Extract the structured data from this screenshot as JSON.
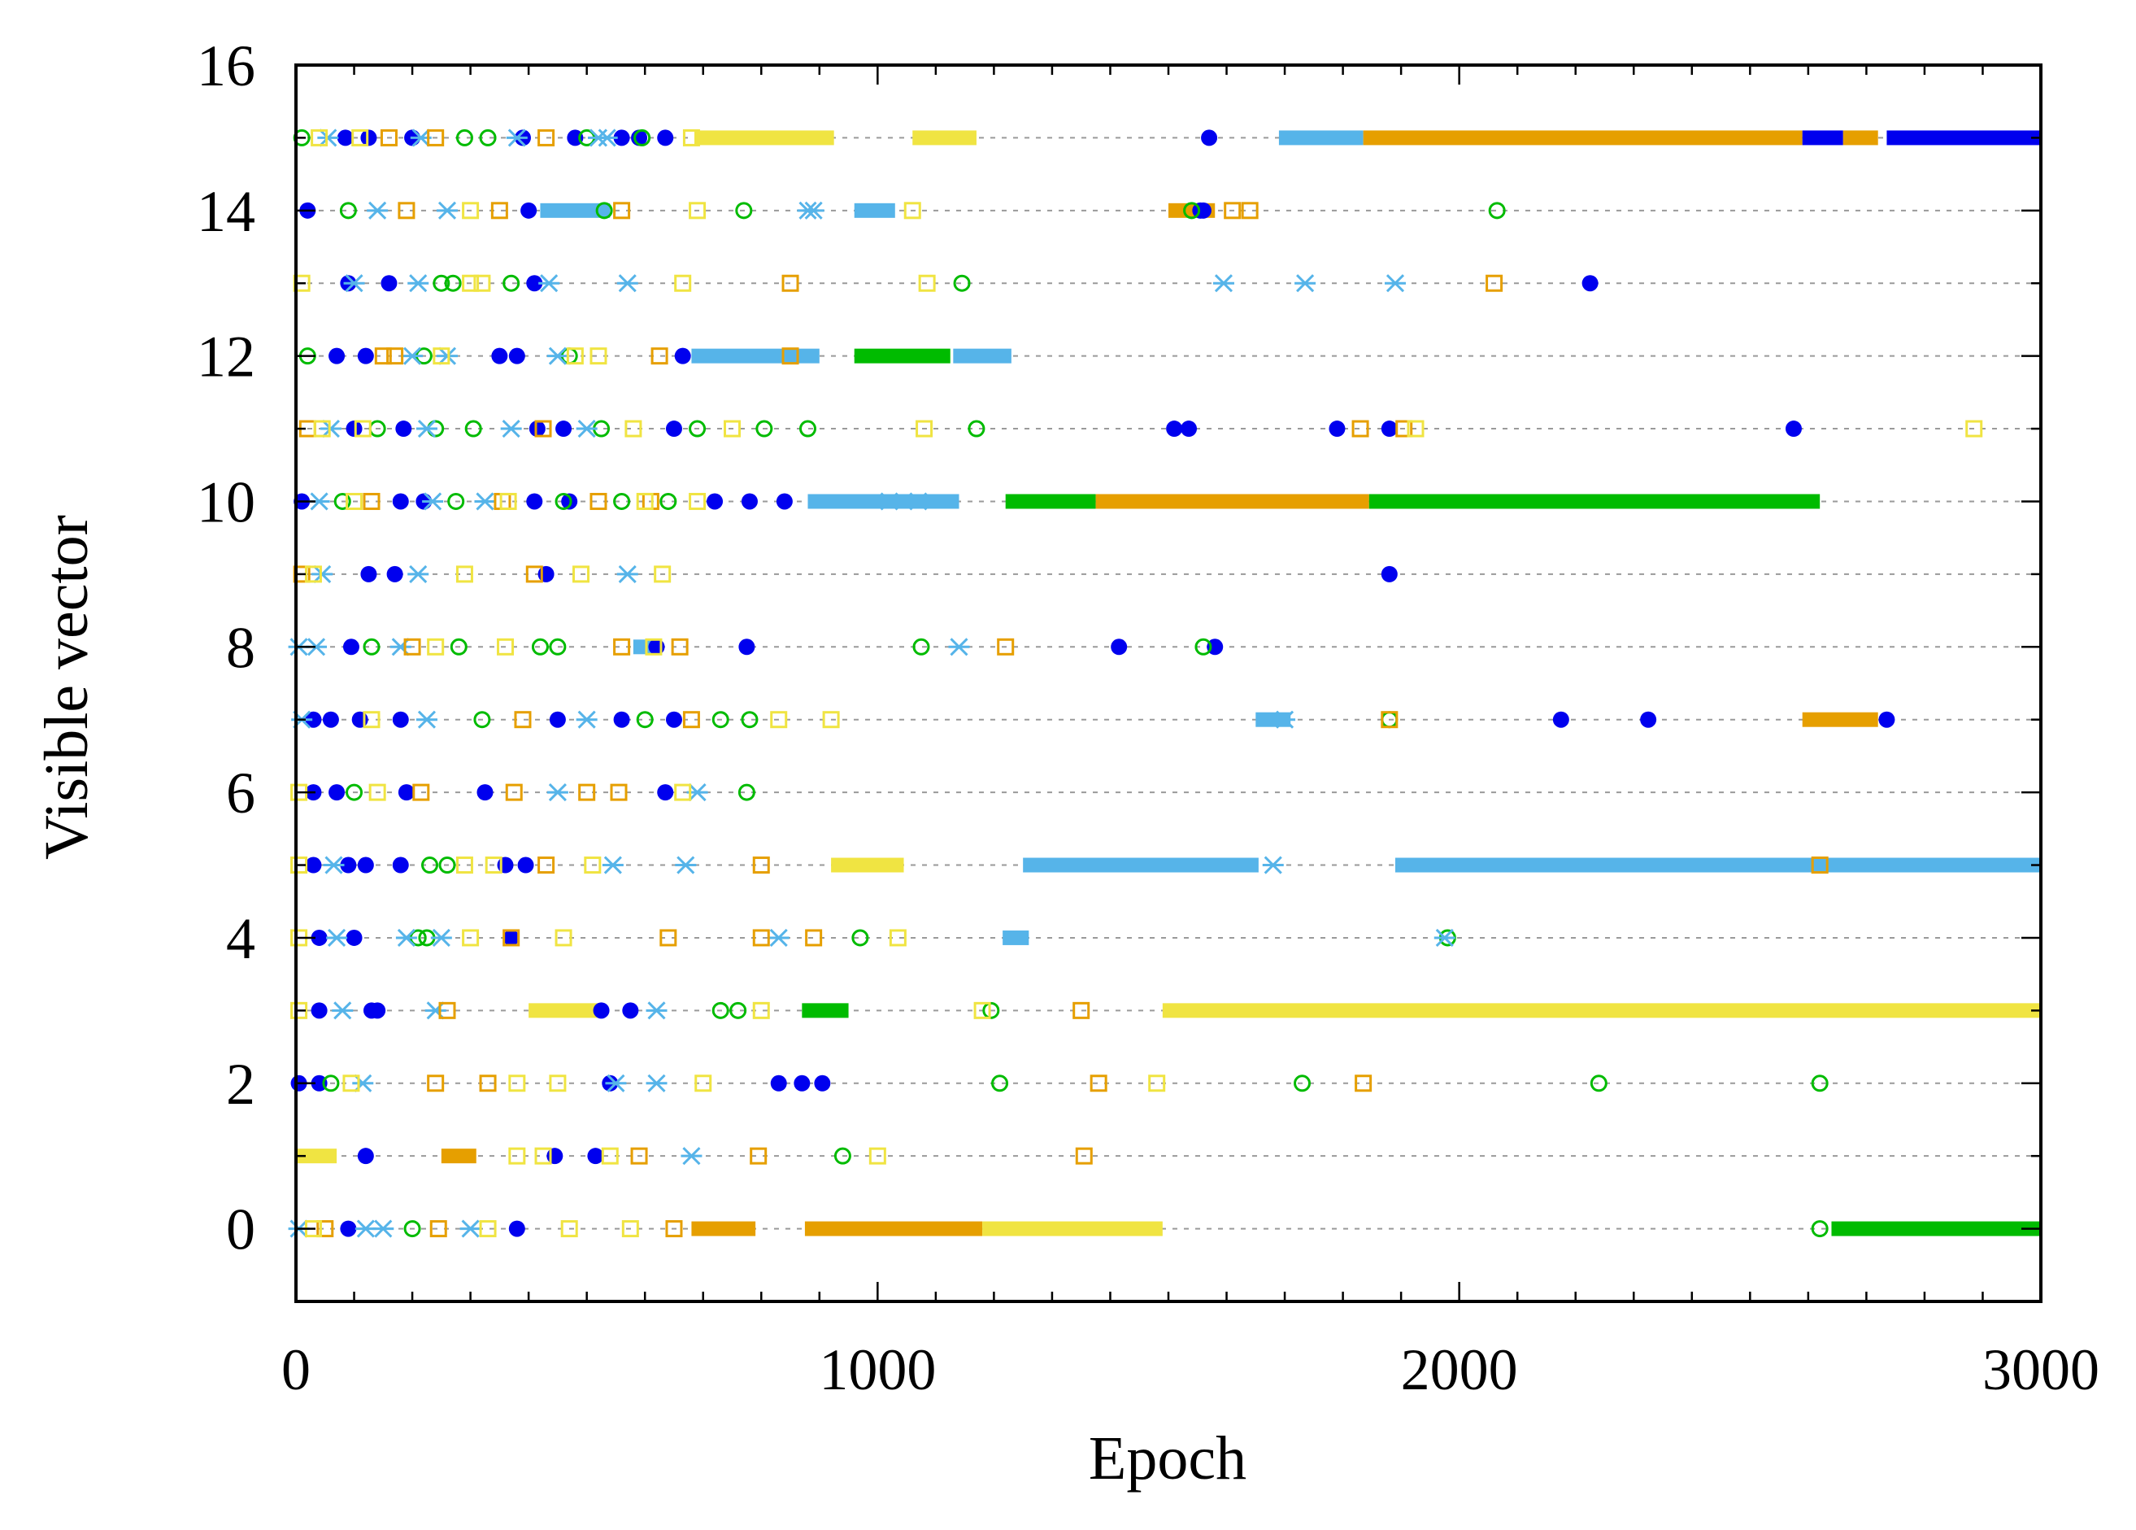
{
  "chart_data": {
    "type": "scatter",
    "title": "",
    "xlabel": "Epoch",
    "ylabel": "Visible vector",
    "xlim": [
      0,
      3000
    ],
    "ylim": [
      -1,
      16
    ],
    "xticks": [
      0,
      1000,
      2000,
      3000
    ],
    "xtick_labels": [
      "0",
      "1000",
      "2000",
      "3000"
    ],
    "yticks": [
      0,
      2,
      4,
      6,
      8,
      10,
      12,
      14,
      16
    ],
    "ytick_labels": [
      "0",
      "2",
      "4",
      "6",
      "8",
      "10",
      "12",
      "14",
      "16"
    ],
    "x_minor_step": 100,
    "y_minor_step": 1,
    "grid": "horizontal dashed at each visible vector 0-15",
    "legend": "none",
    "series": [
      {
        "name": "s1",
        "marker": "filled-circle",
        "color": "#0000ee"
      },
      {
        "name": "s2",
        "marker": "open-circle",
        "color": "#00bb00"
      },
      {
        "name": "s3",
        "marker": "star",
        "color": "#56b4e9"
      },
      {
        "name": "s4",
        "marker": "open-square",
        "color": "#e69f00"
      },
      {
        "name": "s5",
        "marker": "open-square",
        "color": "#f0e442"
      }
    ],
    "bands": [
      {
        "y": 15,
        "series": "s3",
        "x": [
          1690,
          1835
        ]
      },
      {
        "y": 15,
        "series": "s4",
        "x": [
          1835,
          2590
        ]
      },
      {
        "y": 15,
        "series": "s1",
        "x": [
          2590,
          2660
        ]
      },
      {
        "y": 15,
        "series": "s4",
        "x": [
          2660,
          2720
        ]
      },
      {
        "y": 15,
        "series": "s1",
        "x": [
          2735,
          3000
        ]
      },
      {
        "y": 15,
        "series": "s5",
        "x": [
          685,
          925
        ]
      },
      {
        "y": 15,
        "series": "s5",
        "x": [
          1060,
          1170
        ]
      },
      {
        "y": 10,
        "series": "s2",
        "x": [
          1220,
          1375
        ]
      },
      {
        "y": 10,
        "series": "s4",
        "x": [
          1375,
          1845
        ]
      },
      {
        "y": 10,
        "series": "s2",
        "x": [
          1845,
          2620
        ]
      },
      {
        "y": 12,
        "series": "s3",
        "x": [
          680,
          900
        ]
      },
      {
        "y": 12,
        "series": "s3",
        "x": [
          1130,
          1230
        ]
      },
      {
        "y": 12,
        "series": "s2",
        "x": [
          960,
          1125
        ]
      },
      {
        "y": 10,
        "series": "s3",
        "x": [
          880,
          1140
        ]
      },
      {
        "y": 5,
        "series": "s3",
        "x": [
          1250,
          1655
        ]
      },
      {
        "y": 5,
        "series": "s3",
        "x": [
          1890,
          3000
        ]
      },
      {
        "y": 5,
        "series": "s5",
        "x": [
          920,
          1045
        ]
      },
      {
        "y": 3,
        "series": "s5",
        "x": [
          1490,
          3000
        ]
      },
      {
        "y": 3,
        "series": "s5",
        "x": [
          400,
          520
        ]
      },
      {
        "y": 3,
        "series": "s2",
        "x": [
          870,
          950
        ]
      },
      {
        "y": 0,
        "series": "s4",
        "x": [
          680,
          790
        ]
      },
      {
        "y": 0,
        "series": "s4",
        "x": [
          875,
          1180
        ]
      },
      {
        "y": 0,
        "series": "s5",
        "x": [
          1180,
          1490
        ]
      },
      {
        "y": 0,
        "series": "s2",
        "x": [
          2640,
          3000
        ]
      },
      {
        "y": 7,
        "series": "s4",
        "x": [
          2590,
          2720
        ]
      },
      {
        "y": 7,
        "series": "s3",
        "x": [
          1650,
          1710
        ]
      },
      {
        "y": 14,
        "series": "s4",
        "x": [
          1500,
          1580
        ]
      },
      {
        "y": 14,
        "series": "s3",
        "x": [
          420,
          540
        ]
      },
      {
        "y": 14,
        "series": "s3",
        "x": [
          960,
          1030
        ]
      },
      {
        "y": 8,
        "series": "s3",
        "x": [
          580,
          620
        ]
      },
      {
        "y": 4,
        "series": "s3",
        "x": [
          1215,
          1260
        ]
      },
      {
        "y": 1,
        "series": "s5",
        "x": [
          0,
          70
        ]
      },
      {
        "y": 1,
        "series": "s4",
        "x": [
          250,
          310
        ]
      }
    ],
    "points": [
      {
        "y": 15,
        "series": "s1",
        "x": [
          85,
          125,
          200,
          390,
          480,
          560,
          590,
          635,
          1570
        ]
      },
      {
        "y": 15,
        "series": "s2",
        "x": [
          10,
          290,
          330,
          500,
          595
        ]
      },
      {
        "y": 15,
        "series": "s3",
        "x": [
          55,
          215,
          380,
          520,
          535
        ]
      },
      {
        "y": 15,
        "series": "s4",
        "x": [
          160,
          240,
          430
        ]
      },
      {
        "y": 15,
        "series": "s5",
        "x": [
          40,
          110,
          680
        ]
      },
      {
        "y": 14,
        "series": "s1",
        "x": [
          20,
          400,
          1560,
          1555
        ]
      },
      {
        "y": 14,
        "series": "s2",
        "x": [
          90,
          530,
          770,
          1540,
          2065
        ]
      },
      {
        "y": 14,
        "series": "s3",
        "x": [
          140,
          260,
          880,
          890
        ]
      },
      {
        "y": 14,
        "series": "s4",
        "x": [
          190,
          350,
          560,
          1610,
          1640
        ]
      },
      {
        "y": 14,
        "series": "s5",
        "x": [
          300,
          690,
          1060
        ]
      },
      {
        "y": 13,
        "series": "s1",
        "x": [
          90,
          160,
          410,
          2225
        ]
      },
      {
        "y": 13,
        "series": "s2",
        "x": [
          250,
          270,
          370,
          1145
        ]
      },
      {
        "y": 13,
        "series": "s3",
        "x": [
          100,
          210,
          435,
          570,
          1595,
          1735,
          1890
        ]
      },
      {
        "y": 13,
        "series": "s4",
        "x": [
          850,
          2060
        ]
      },
      {
        "y": 13,
        "series": "s5",
        "x": [
          10,
          300,
          320,
          665,
          1085
        ]
      },
      {
        "y": 12,
        "series": "s1",
        "x": [
          70,
          120,
          350,
          380,
          665
        ]
      },
      {
        "y": 12,
        "series": "s2",
        "x": [
          20,
          220,
          470
        ]
      },
      {
        "y": 12,
        "series": "s3",
        "x": [
          200,
          260,
          450
        ]
      },
      {
        "y": 12,
        "series": "s4",
        "x": [
          150,
          170,
          625,
          850
        ]
      },
      {
        "y": 12,
        "series": "s5",
        "x": [
          250,
          480,
          520
        ]
      },
      {
        "y": 11,
        "series": "s1",
        "x": [
          100,
          185,
          415,
          460,
          650,
          1510,
          1535,
          1790,
          1880,
          2575
        ]
      },
      {
        "y": 11,
        "series": "s2",
        "x": [
          140,
          240,
          305,
          525,
          690,
          805,
          880,
          1170
        ]
      },
      {
        "y": 11,
        "series": "s3",
        "x": [
          60,
          225,
          370,
          500
        ]
      },
      {
        "y": 11,
        "series": "s4",
        "x": [
          20,
          425,
          1830,
          1905
        ]
      },
      {
        "y": 11,
        "series": "s5",
        "x": [
          45,
          115,
          580,
          750,
          1080,
          1925,
          2885
        ]
      },
      {
        "y": 10,
        "series": "s1",
        "x": [
          10,
          180,
          220,
          410,
          470,
          720,
          780,
          840
        ]
      },
      {
        "y": 10,
        "series": "s2",
        "x": [
          80,
          275,
          460,
          560,
          640
        ]
      },
      {
        "y": 10,
        "series": "s3",
        "x": [
          40,
          235,
          325,
          1020,
          1070
        ]
      },
      {
        "y": 10,
        "series": "s4",
        "x": [
          130,
          355,
          520,
          610
        ]
      },
      {
        "y": 10,
        "series": "s5",
        "x": [
          100,
          365,
          600,
          690
        ]
      },
      {
        "y": 9,
        "series": "s1",
        "x": [
          125,
          170,
          430,
          1880
        ]
      },
      {
        "y": 9,
        "series": "s3",
        "x": [
          45,
          210,
          570
        ]
      },
      {
        "y": 9,
        "series": "s4",
        "x": [
          10,
          410
        ]
      },
      {
        "y": 9,
        "series": "s5",
        "x": [
          30,
          290,
          490,
          630
        ]
      },
      {
        "y": 8,
        "series": "s1",
        "x": [
          95,
          620,
          775,
          1415,
          1580
        ]
      },
      {
        "y": 8,
        "series": "s2",
        "x": [
          130,
          280,
          420,
          450,
          1075,
          1560
        ]
      },
      {
        "y": 8,
        "series": "s3",
        "x": [
          5,
          35,
          180,
          1140
        ]
      },
      {
        "y": 8,
        "series": "s4",
        "x": [
          200,
          560,
          660,
          1220
        ]
      },
      {
        "y": 8,
        "series": "s5",
        "x": [
          240,
          360,
          615
        ]
      },
      {
        "y": 7,
        "series": "s1",
        "x": [
          30,
          60,
          110,
          180,
          450,
          560,
          650,
          2175,
          2325,
          2735
        ]
      },
      {
        "y": 7,
        "series": "s2",
        "x": [
          320,
          600,
          730,
          780,
          1880
        ]
      },
      {
        "y": 7,
        "series": "s3",
        "x": [
          10,
          225,
          500,
          1700
        ]
      },
      {
        "y": 7,
        "series": "s4",
        "x": [
          390,
          680,
          1880
        ]
      },
      {
        "y": 7,
        "series": "s5",
        "x": [
          130,
          830,
          920
        ]
      },
      {
        "y": 6,
        "series": "s1",
        "x": [
          30,
          70,
          190,
          325,
          635
        ]
      },
      {
        "y": 6,
        "series": "s2",
        "x": [
          100,
          775
        ]
      },
      {
        "y": 6,
        "series": "s3",
        "x": [
          450,
          690
        ]
      },
      {
        "y": 6,
        "series": "s4",
        "x": [
          215,
          375,
          500,
          555
        ]
      },
      {
        "y": 6,
        "series": "s5",
        "x": [
          5,
          140,
          665
        ]
      },
      {
        "y": 5,
        "series": "s1",
        "x": [
          30,
          90,
          120,
          180,
          360,
          395
        ]
      },
      {
        "y": 5,
        "series": "s2",
        "x": [
          230,
          260
        ]
      },
      {
        "y": 5,
        "series": "s3",
        "x": [
          65,
          545,
          670,
          1680
        ]
      },
      {
        "y": 5,
        "series": "s4",
        "x": [
          430,
          800,
          2620
        ]
      },
      {
        "y": 5,
        "series": "s5",
        "x": [
          5,
          290,
          340,
          510
        ]
      },
      {
        "y": 4,
        "series": "s1",
        "x": [
          40,
          100,
          370
        ]
      },
      {
        "y": 4,
        "series": "s2",
        "x": [
          210,
          225,
          970,
          1980
        ]
      },
      {
        "y": 4,
        "series": "s3",
        "x": [
          70,
          190,
          250,
          830,
          1975
        ]
      },
      {
        "y": 4,
        "series": "s4",
        "x": [
          370,
          640,
          800,
          890
        ]
      },
      {
        "y": 4,
        "series": "s5",
        "x": [
          5,
          300,
          460,
          1035
        ]
      },
      {
        "y": 3,
        "series": "s1",
        "x": [
          40,
          130,
          140,
          525,
          575
        ]
      },
      {
        "y": 3,
        "series": "s2",
        "x": [
          730,
          760,
          1195
        ]
      },
      {
        "y": 3,
        "series": "s3",
        "x": [
          80,
          240,
          620
        ]
      },
      {
        "y": 3,
        "series": "s4",
        "x": [
          260,
          1350
        ]
      },
      {
        "y": 3,
        "series": "s5",
        "x": [
          5,
          800,
          1180
        ]
      },
      {
        "y": 2,
        "series": "s1",
        "x": [
          5,
          40,
          540,
          830,
          870,
          905
        ]
      },
      {
        "y": 2,
        "series": "s2",
        "x": [
          60,
          1210,
          1730,
          2240,
          2620
        ]
      },
      {
        "y": 2,
        "series": "s3",
        "x": [
          115,
          550,
          620
        ]
      },
      {
        "y": 2,
        "series": "s4",
        "x": [
          240,
          330,
          1380,
          1835
        ]
      },
      {
        "y": 2,
        "series": "s5",
        "x": [
          95,
          380,
          450,
          700,
          1480
        ]
      },
      {
        "y": 1,
        "series": "s1",
        "x": [
          120,
          445,
          515
        ]
      },
      {
        "y": 1,
        "series": "s2",
        "x": [
          940
        ]
      },
      {
        "y": 1,
        "series": "s3",
        "x": [
          680
        ]
      },
      {
        "y": 1,
        "series": "s4",
        "x": [
          590,
          795,
          1355
        ]
      },
      {
        "y": 1,
        "series": "s5",
        "x": [
          380,
          425,
          540,
          1000
        ]
      },
      {
        "y": 0,
        "series": "s1",
        "x": [
          90,
          380
        ]
      },
      {
        "y": 0,
        "series": "s2",
        "x": [
          200,
          2620
        ]
      },
      {
        "y": 0,
        "series": "s3",
        "x": [
          5,
          120,
          150,
          300
        ]
      },
      {
        "y": 0,
        "series": "s4",
        "x": [
          50,
          245,
          650
        ]
      },
      {
        "y": 0,
        "series": "s5",
        "x": [
          30,
          330,
          470,
          575
        ]
      }
    ]
  }
}
